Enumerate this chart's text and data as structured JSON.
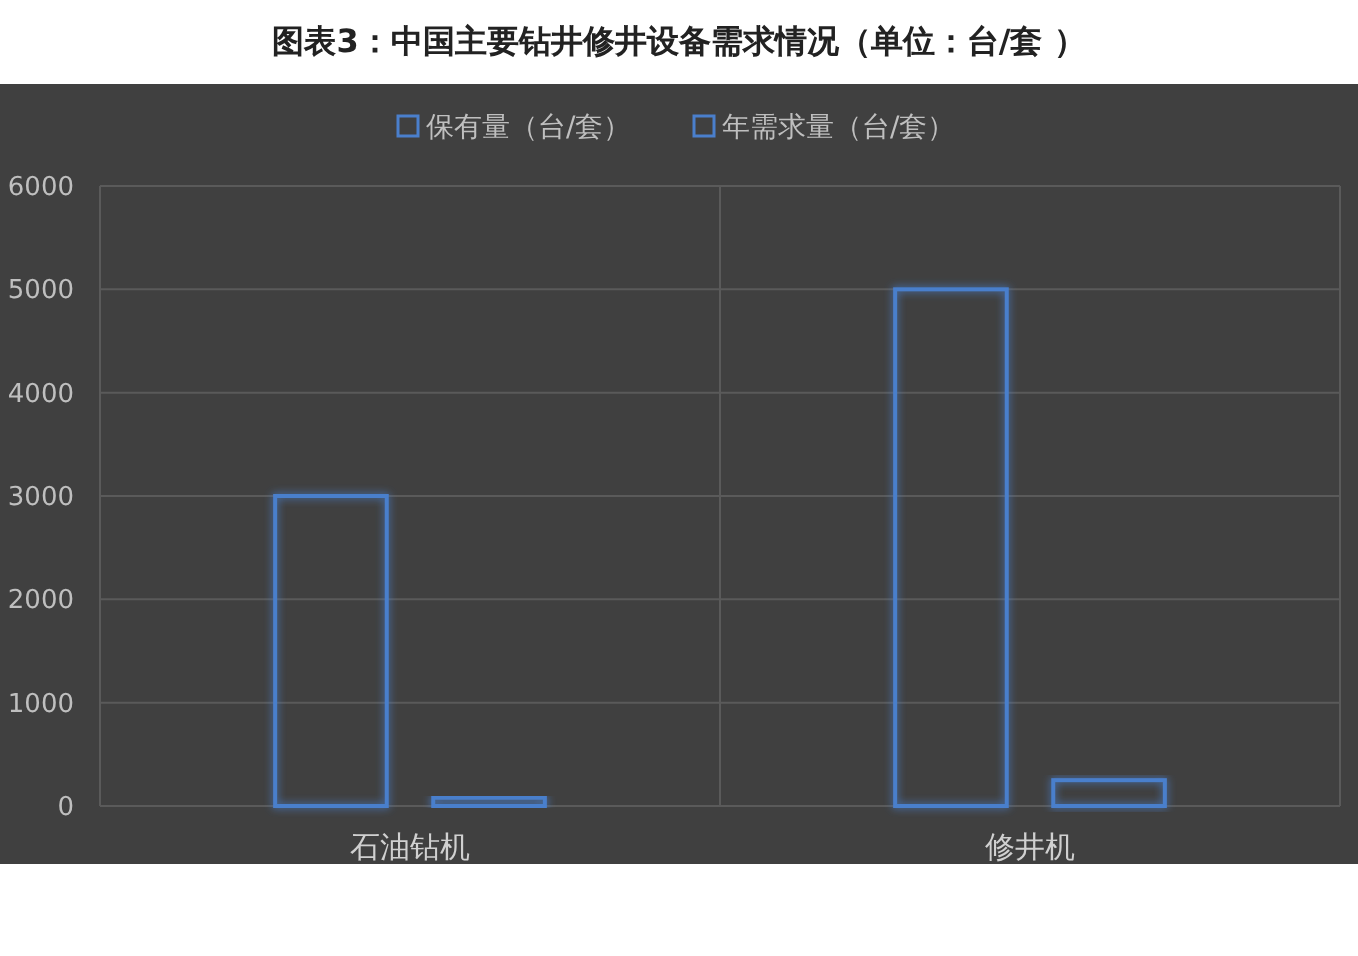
{
  "chart_data": {
    "type": "bar",
    "title": "图表3：中国主要钻井修井设备需求情况（单位：台/套 ）",
    "categories": [
      "石油钻机",
      "修井机"
    ],
    "series": [
      {
        "name": "保有量（台/套）",
        "color": "#4a7fcc",
        "values": [
          3000,
          5000
        ]
      },
      {
        "name": "年需求量（台/套）",
        "color": "#4a7fcc",
        "values": [
          80,
          250
        ]
      }
    ],
    "ylim": [
      0,
      6000
    ],
    "yticks": [
      0,
      1000,
      2000,
      3000,
      4000,
      5000,
      6000
    ],
    "grid": true,
    "legend": "top"
  }
}
